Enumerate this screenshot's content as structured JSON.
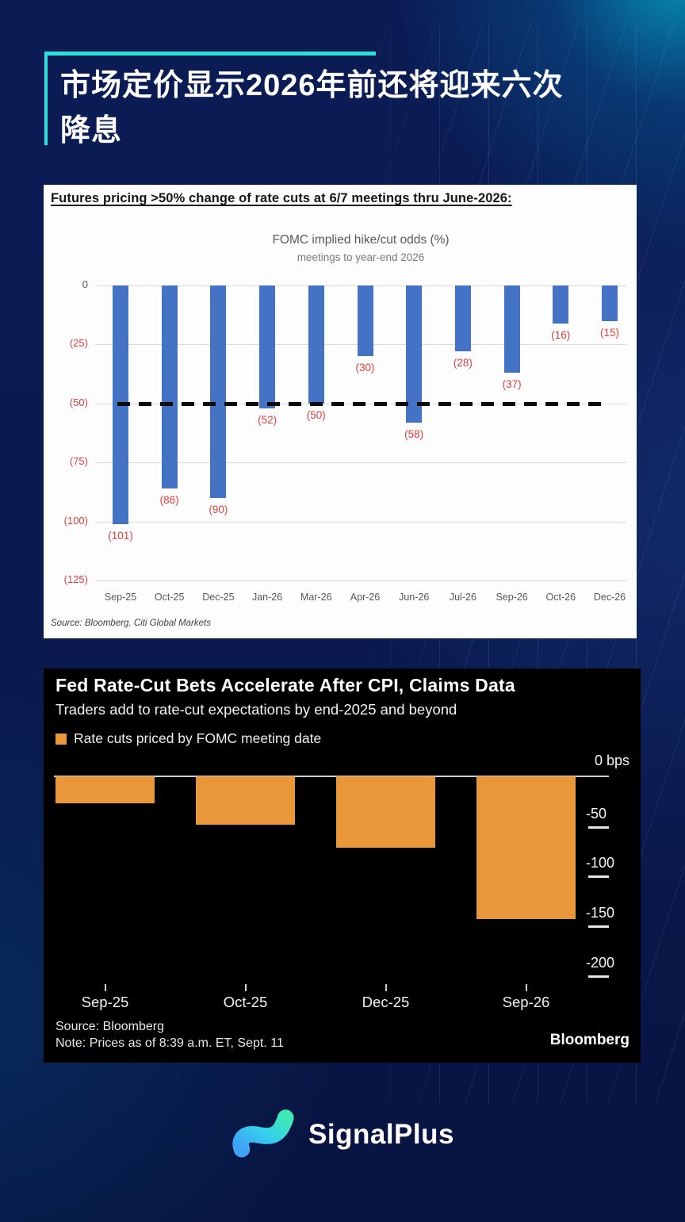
{
  "page": {
    "title": "市场定价显示2026年前还将迎来六次\n降息",
    "accent_color": "#2fe0d8",
    "brand_name": "SignalPlus"
  },
  "chart_data": [
    {
      "type": "bar",
      "header": "Futures pricing >50% change of rate cuts at 6/7 meetings thru June-2026:",
      "title": "FOMC implied hike/cut odds (%)",
      "subtitle": "meetings to year-end 2026",
      "categories": [
        "Sep-25",
        "Oct-25",
        "Dec-25",
        "Jan-26",
        "Mar-26",
        "Apr-26",
        "Jun-26",
        "Jul-26",
        "Sep-26",
        "Oct-26",
        "Dec-26"
      ],
      "values": [
        -101,
        -86,
        -90,
        -52,
        -50,
        -30,
        -58,
        -28,
        -37,
        -16,
        -15
      ],
      "value_labels": [
        "(101)",
        "(86)",
        "(90)",
        "(52)",
        "(50)",
        "(30)",
        "(58)",
        "(28)",
        "(37)",
        "(16)",
        "(15)"
      ],
      "ytick_values": [
        0,
        -25,
        -50,
        -75,
        -100,
        -125
      ],
      "ytick_labels": [
        "0",
        "(25)",
        "(50)",
        "(75)",
        "(100)",
        "(125)"
      ],
      "ylim": [
        -125,
        0
      ],
      "reference_line": -50,
      "grid": true,
      "bar_color": "#4472c4",
      "label_color": "#e03e3e",
      "source": "Source: Bloomberg, Citi Global Markets"
    },
    {
      "type": "bar",
      "title": "Fed Rate-Cut Bets Accelerate After CPI, Claims Data",
      "subtitle": "Traders add to rate-cut expectations by end-2025 and beyond",
      "legend": "Rate cuts priced by FOMC meeting date",
      "legend_position": "top-left",
      "categories": [
        "Sep-25",
        "Oct-25",
        "Dec-25",
        "Sep-26"
      ],
      "values": [
        -27,
        -49,
        -72,
        -144
      ],
      "unit": "bps",
      "zero_label": "0 bps",
      "ytick_values": [
        -50,
        -100,
        -150,
        -200
      ],
      "ytick_labels": [
        "-50",
        "-100",
        "-150",
        "-200"
      ],
      "ylim": [
        -200,
        0
      ],
      "grid": false,
      "bar_color": "#e8983a",
      "source": "Source: Bloomberg",
      "note": "Note: Prices as of 8:39 a.m. ET, Sept. 11",
      "brand": "Bloomberg"
    }
  ]
}
